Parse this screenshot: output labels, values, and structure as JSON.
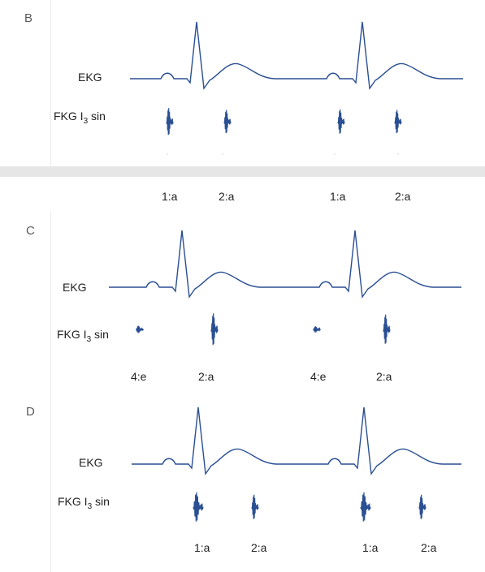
{
  "colors": {
    "trace": "#2a4f93",
    "divider": "#e6e6e6",
    "panel_label": "#5a5a5a"
  },
  "panel_b": {
    "label": "B",
    "ekg_label": "EKG",
    "fkg_label_main": "FKG I",
    "fkg_label_sub": "3",
    "fkg_label_tail": " sin"
  },
  "divider_labels": {
    "first_a": "1:a",
    "second_a": "2:a",
    "first_b": "1:a",
    "second_b": "2:a"
  },
  "panel_c": {
    "label": "C",
    "ekg_label": "EKG",
    "fkg_label_main": "FKG I",
    "fkg_label_sub": "3",
    "fkg_label_tail": " sin",
    "marker_1": "4:e",
    "marker_2": "2:a",
    "marker_3": "4:e",
    "marker_4": "2:a"
  },
  "panel_d": {
    "label": "D",
    "ekg_label": "EKG",
    "fkg_label_main": "FKG I",
    "fkg_label_sub": "3",
    "fkg_label_tail": " sin",
    "marker_1": "1:a",
    "marker_2": "2:a",
    "marker_3": "1:a",
    "marker_4": "2:a"
  }
}
